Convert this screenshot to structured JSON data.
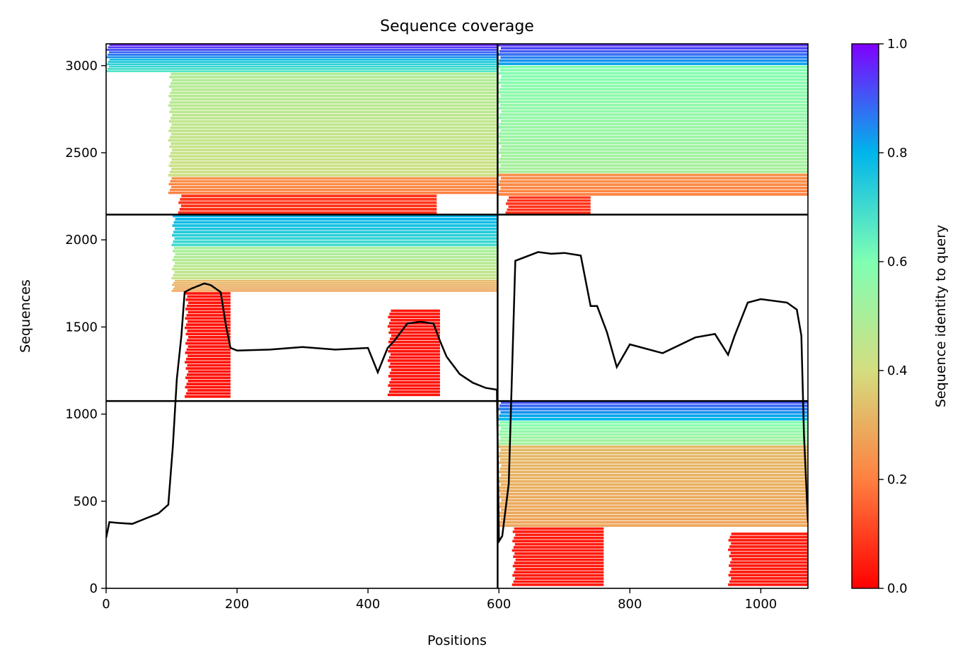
{
  "chart_data": {
    "type": "heatmap",
    "title": "Sequence coverage",
    "xlabel": "Positions",
    "ylabel": "Sequences",
    "xlim": [
      0,
      1072
    ],
    "ylim": [
      0,
      3125
    ],
    "xticks": [
      0,
      200,
      400,
      600,
      800,
      1000
    ],
    "yticks": [
      0,
      500,
      1000,
      1500,
      2000,
      2500,
      3000
    ],
    "grid": false,
    "legend": "none",
    "colorbar": {
      "label": "Sequence identity to query",
      "range": [
        0.0,
        1.0
      ],
      "ticks": [
        "0.0",
        "0.2",
        "0.4",
        "0.6",
        "0.8",
        "1.0"
      ],
      "colormap": "rainbow_r",
      "stops": [
        "#ff0000",
        "#ff8040",
        "#d4dd80",
        "#80ffb3",
        "#00b5eb",
        "#8000ff"
      ]
    },
    "dividers": {
      "vertical_x": 598,
      "horizontal_y": [
        1075,
        2145
      ]
    },
    "blocks": [
      {
        "name": "block-1-1",
        "x": [
          0,
          598
        ],
        "y": [
          0,
          1075
        ],
        "filled": false
      },
      {
        "name": "block-2-1",
        "x": [
          0,
          598
        ],
        "y": [
          1075,
          2145
        ],
        "filled": true,
        "bands": [
          {
            "x": [
              100,
              598
            ],
            "y": [
              1960,
              2145
            ],
            "identity": 0.75
          },
          {
            "x": [
              100,
              598
            ],
            "y": [
              1770,
              1960
            ],
            "identity": 0.47
          },
          {
            "x": [
              100,
              598
            ],
            "y": [
              1700,
              1770
            ],
            "identity": 0.3
          },
          {
            "x": [
              120,
              190
            ],
            "y": [
              1090,
              1700
            ],
            "identity": 0.03
          },
          {
            "x": [
              430,
              510
            ],
            "y": [
              1100,
              1600
            ],
            "identity": 0.03
          }
        ]
      },
      {
        "name": "block-3-1",
        "x": [
          0,
          598
        ],
        "y": [
          2145,
          3125
        ],
        "filled": true,
        "bands": [
          {
            "x": [
              0,
              598
            ],
            "y": [
              3040,
              3125
            ],
            "identity": 0.9
          },
          {
            "x": [
              0,
              598
            ],
            "y": [
              2960,
              3040
            ],
            "identity": 0.72
          },
          {
            "x": [
              95,
              598
            ],
            "y": [
              2360,
              2960
            ],
            "identity": 0.45
          },
          {
            "x": [
              95,
              598
            ],
            "y": [
              2260,
              2360
            ],
            "identity": 0.22
          },
          {
            "x": [
              110,
              505
            ],
            "y": [
              2145,
              2260
            ],
            "identity": 0.08
          }
        ]
      },
      {
        "name": "block-1-2",
        "x": [
          598,
          1072
        ],
        "y": [
          0,
          1075
        ],
        "filled": true,
        "bands": [
          {
            "x": [
              598,
              1072
            ],
            "y": [
              960,
              1075
            ],
            "identity": 0.85
          },
          {
            "x": [
              598,
              1072
            ],
            "y": [
              820,
              960
            ],
            "identity": 0.55
          },
          {
            "x": [
              598,
              1072
            ],
            "y": [
              350,
              820
            ],
            "identity": 0.3
          },
          {
            "x": [
              620,
              760
            ],
            "y": [
              10,
              350
            ],
            "identity": 0.04
          },
          {
            "x": [
              950,
              1072
            ],
            "y": [
              10,
              320
            ],
            "identity": 0.04
          }
        ]
      },
      {
        "name": "block-2-2",
        "x": [
          598,
          1072
        ],
        "y": [
          1075,
          2145
        ],
        "filled": false
      },
      {
        "name": "block-3-2",
        "x": [
          598,
          1072
        ],
        "y": [
          2145,
          3125
        ],
        "filled": true,
        "bands": [
          {
            "x": [
              598,
              1072
            ],
            "y": [
              3000,
              3125
            ],
            "identity": 0.88
          },
          {
            "x": [
              598,
              1072
            ],
            "y": [
              2380,
              3000
            ],
            "identity": 0.55
          },
          {
            "x": [
              598,
              1072
            ],
            "y": [
              2250,
              2380
            ],
            "identity": 0.22
          },
          {
            "x": [
              610,
              740
            ],
            "y": [
              2145,
              2250
            ],
            "identity": 0.08
          }
        ]
      }
    ],
    "coverage_line": {
      "x": [
        0,
        5,
        20,
        40,
        60,
        80,
        95,
        102,
        108,
        115,
        120,
        130,
        150,
        160,
        175,
        183,
        190,
        200,
        250,
        300,
        350,
        400,
        415,
        430,
        440,
        460,
        480,
        500,
        510,
        520,
        540,
        560,
        580,
        597,
        600,
        605,
        615,
        625,
        660,
        680,
        700,
        725,
        740,
        750,
        765,
        780,
        800,
        850,
        900,
        930,
        950,
        960,
        980,
        1000,
        1040,
        1055,
        1062,
        1066,
        1072
      ],
      "y": [
        290,
        380,
        375,
        370,
        400,
        430,
        480,
        820,
        1200,
        1450,
        1700,
        1720,
        1750,
        1740,
        1700,
        1510,
        1380,
        1365,
        1370,
        1385,
        1370,
        1380,
        1240,
        1380,
        1420,
        1520,
        1530,
        1520,
        1420,
        1330,
        1230,
        1180,
        1150,
        1140,
        270,
        300,
        600,
        1880,
        1930,
        1920,
        1925,
        1910,
        1620,
        1620,
        1470,
        1270,
        1400,
        1350,
        1440,
        1460,
        1340,
        1450,
        1640,
        1660,
        1640,
        1600,
        1450,
        880,
        380
      ]
    }
  }
}
